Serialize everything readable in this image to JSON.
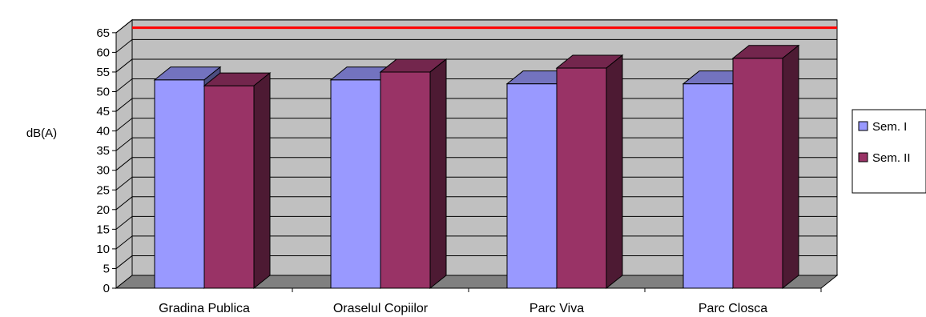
{
  "chart_data": {
    "type": "bar",
    "title": "",
    "xlabel": "",
    "ylabel": "dB(A)",
    "ylim": [
      0,
      65
    ],
    "ytick_step": 5,
    "categories": [
      "Gradina Publica",
      "Oraselul Copiilor",
      "Parc Viva",
      "Parc Closca"
    ],
    "series": [
      {
        "name": "Sem. I",
        "values": [
          53,
          53,
          52,
          52
        ],
        "color": "#9999ff"
      },
      {
        "name": "Sem. II",
        "values": [
          51.5,
          55,
          56,
          58.5
        ],
        "color": "#993366"
      }
    ],
    "reference_line": {
      "value": 63,
      "color": "#ff0000"
    },
    "grid": true,
    "legend_position": "right",
    "style": "3d-clustered-column"
  }
}
